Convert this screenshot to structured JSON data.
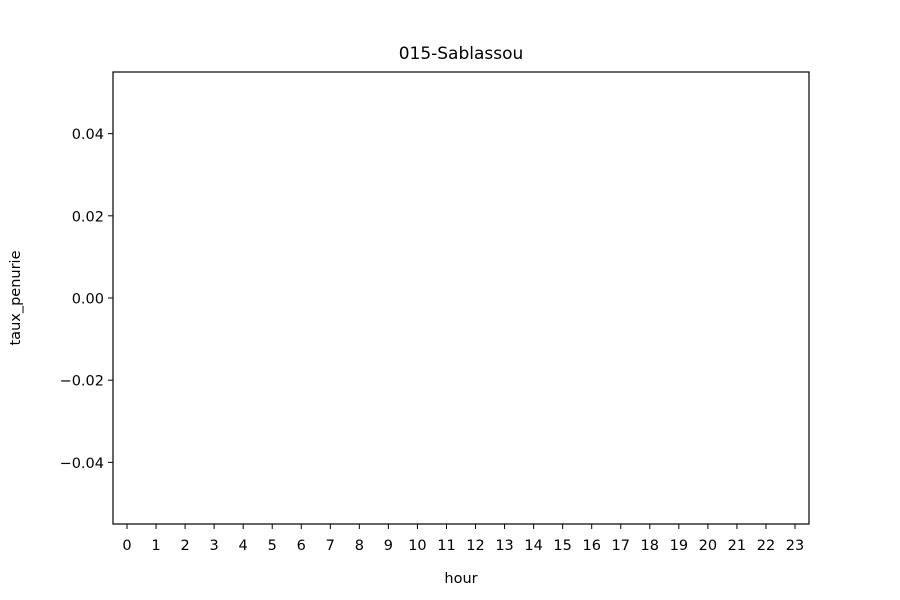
{
  "chart_data": {
    "type": "bar",
    "title": "015-Sablassou",
    "xlabel": "hour",
    "ylabel": "taux_penurie",
    "categories": [
      "0",
      "1",
      "2",
      "3",
      "4",
      "5",
      "6",
      "7",
      "8",
      "9",
      "10",
      "11",
      "12",
      "13",
      "14",
      "15",
      "16",
      "17",
      "18",
      "19",
      "20",
      "21",
      "22",
      "23"
    ],
    "values": [
      0,
      0,
      0,
      0,
      0,
      0,
      0,
      0,
      0,
      0,
      0,
      0,
      0,
      0,
      0,
      0,
      0,
      0,
      0,
      0,
      0,
      0,
      0,
      0
    ],
    "ylim": [
      -0.055,
      0.055
    ],
    "yticks": [
      0.04,
      0.02,
      0.0,
      -0.02,
      -0.04
    ],
    "ytick_labels": [
      "0.04",
      "0.02",
      "0.00",
      "−0.02",
      "−0.04"
    ],
    "grid": false,
    "legend": "none"
  }
}
